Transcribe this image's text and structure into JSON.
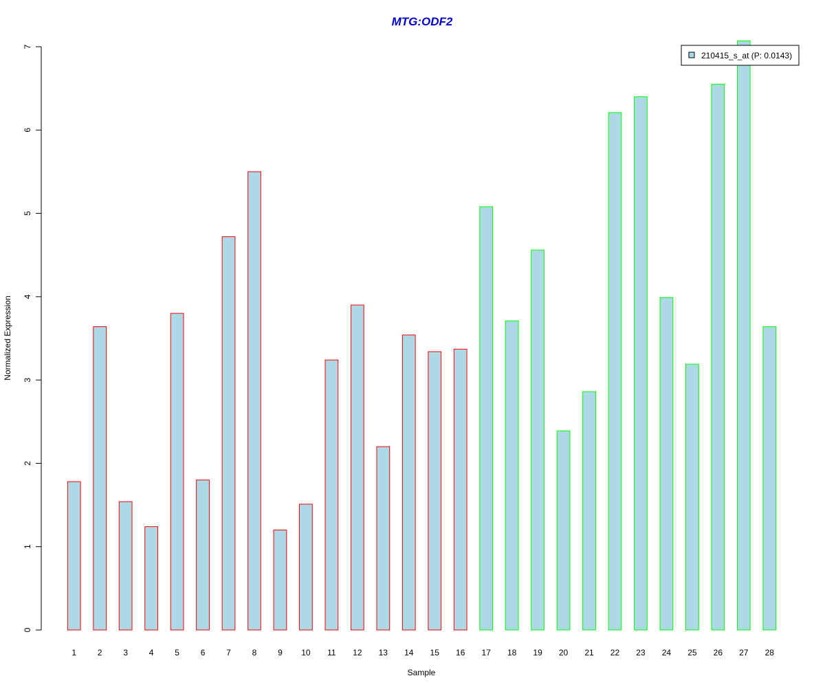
{
  "chart_data": {
    "type": "bar",
    "title": "MTG:ODF2",
    "xlabel": "Sample",
    "ylabel": "Normalized Expression",
    "ylim": [
      0,
      7
    ],
    "yticks": [
      "0",
      "1",
      "2",
      "3",
      "4",
      "5",
      "6",
      "7"
    ],
    "categories": [
      "1",
      "2",
      "3",
      "4",
      "5",
      "6",
      "7",
      "8",
      "9",
      "10",
      "11",
      "12",
      "13",
      "14",
      "15",
      "16",
      "17",
      "18",
      "19",
      "20",
      "21",
      "22",
      "23",
      "24",
      "25",
      "26",
      "27",
      "28"
    ],
    "values": [
      1.78,
      3.64,
      1.54,
      1.24,
      3.8,
      1.8,
      4.72,
      5.5,
      1.2,
      1.51,
      3.24,
      3.9,
      2.2,
      3.54,
      3.34,
      3.37,
      5.08,
      3.71,
      4.56,
      2.39,
      2.86,
      6.21,
      6.4,
      3.99,
      3.19,
      6.55,
      7.07,
      3.64
    ],
    "group_border_colors": [
      "#ff0000",
      "#ff0000",
      "#ff0000",
      "#ff0000",
      "#ff0000",
      "#ff0000",
      "#ff0000",
      "#ff0000",
      "#ff0000",
      "#ff0000",
      "#ff0000",
      "#ff0000",
      "#ff0000",
      "#ff0000",
      "#ff0000",
      "#ff0000",
      "#00ff00",
      "#00ff00",
      "#00ff00",
      "#00ff00",
      "#00ff00",
      "#00ff00",
      "#00ff00",
      "#00ff00",
      "#00ff00",
      "#00ff00",
      "#00ff00",
      "#00ff00"
    ],
    "bar_fill": "#add8e6",
    "title_color": "#0000cc",
    "legend": {
      "placement": "top-right",
      "label": "210415_s_at (P: 0.0143)"
    },
    "grid": false
  }
}
